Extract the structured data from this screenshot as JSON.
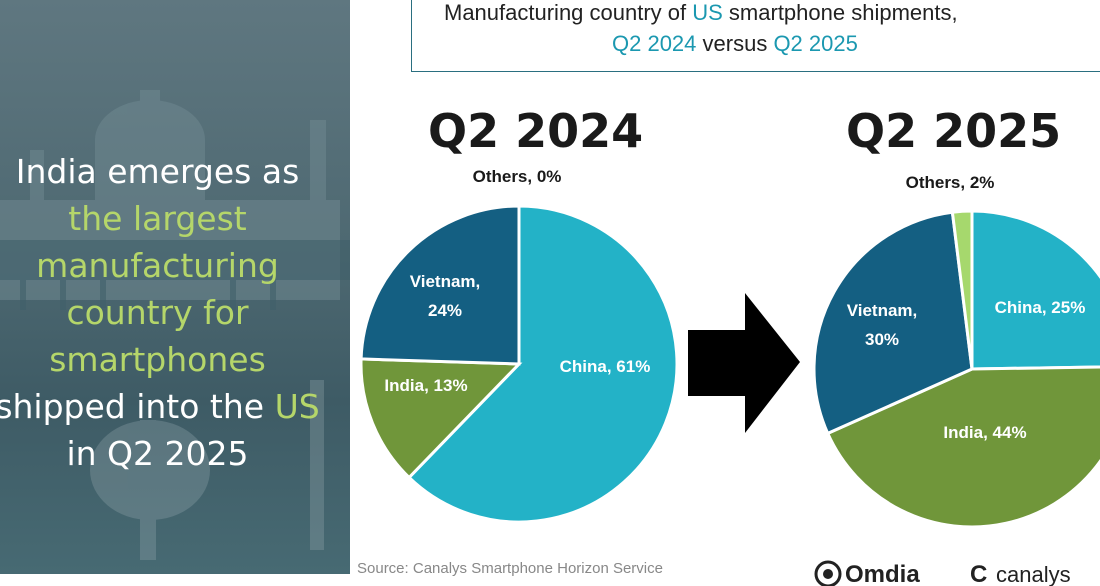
{
  "headline": {
    "parts": [
      {
        "text": "India emerges as ",
        "hl": false
      },
      {
        "text": "the largest manufacturing country for smartphones",
        "hl": true
      },
      {
        "text": " shipped into the ",
        "hl": false
      },
      {
        "text": "US",
        "hl": true
      },
      {
        "text": " in Q2 2025",
        "hl": false
      }
    ]
  },
  "title": {
    "line1_a": "Manufacturing country of ",
    "line1_accent": "US",
    "line1_b": " smartphone shipments,",
    "line2_a": "Q2 2024",
    "line2_b": " versus ",
    "line2_c": "Q2 2025"
  },
  "source": "Source: Canalys Smartphone Horizon Service",
  "logos": {
    "omdia": "Omdia",
    "canalys": "canalys"
  },
  "colors": {
    "china": "#23b2c7",
    "vietnam": "#145f82",
    "india": "#70963a",
    "others": "#a6d86d",
    "accent": "#1b98b0",
    "highlight": "#b5d66a"
  },
  "chart_data": [
    {
      "type": "pie",
      "title": "Q2 2024",
      "slices": [
        {
          "name": "China",
          "value": 61,
          "label": "China, 61%",
          "color_key": "china"
        },
        {
          "name": "India",
          "value": 13,
          "label": "India, 13%",
          "color_key": "india"
        },
        {
          "name": "Vietnam",
          "value": 24,
          "label": "Vietnam, 24%",
          "color_key": "vietnam"
        },
        {
          "name": "Others",
          "value": 0,
          "label": "Others, 0%",
          "color_key": "others"
        }
      ]
    },
    {
      "type": "pie",
      "title": "Q2 2025",
      "slices": [
        {
          "name": "China",
          "value": 25,
          "label": "China, 25%",
          "color_key": "china"
        },
        {
          "name": "India",
          "value": 44,
          "label": "India, 44%",
          "color_key": "india"
        },
        {
          "name": "Vietnam",
          "value": 30,
          "label": "Vietnam, 30%",
          "color_key": "vietnam"
        },
        {
          "name": "Others",
          "value": 2,
          "label": "Others, 2%",
          "color_key": "others"
        }
      ]
    }
  ]
}
